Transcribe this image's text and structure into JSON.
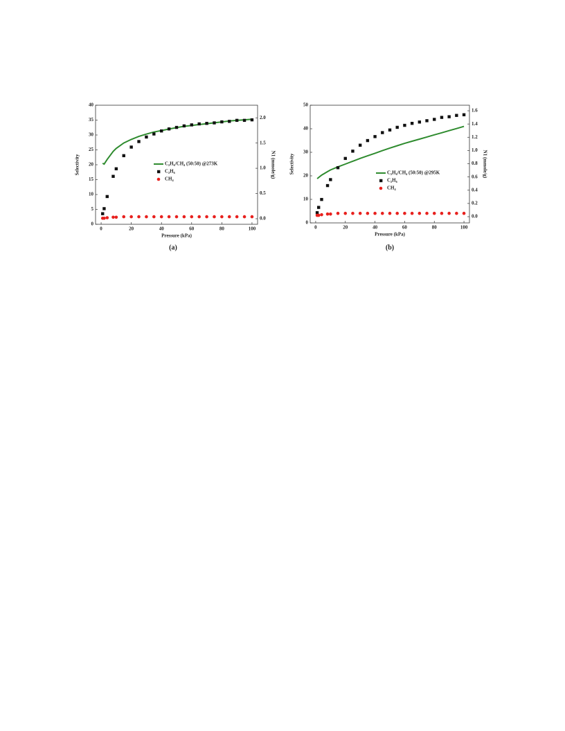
{
  "chart_data": [
    {
      "type": "line",
      "xlabel": "Pressure (kPa)",
      "ylabel": "Selectivity",
      "y2label": "N1 (mmole/g)",
      "caption": "(a)",
      "legend": "right",
      "x": [
        1,
        2,
        4,
        8,
        10,
        15,
        20,
        25,
        30,
        35,
        40,
        45,
        50,
        55,
        60,
        65,
        70,
        75,
        80,
        85,
        90,
        95,
        100
      ],
      "xlim": [
        -3.7,
        103.7
      ],
      "xticks": [
        0,
        20,
        40,
        60,
        80,
        100
      ],
      "ylim": [
        0,
        40
      ],
      "yticks": [
        0,
        5,
        10,
        15,
        20,
        25,
        30,
        35,
        40
      ],
      "y2lim": [
        -0.11,
        2.25
      ],
      "y2ticks": [
        {
          "value": 0,
          "label": "0.0"
        },
        0.5,
        {
          "value": 1,
          "label": "1.0"
        },
        1.5,
        {
          "value": 2,
          "label": "2.0"
        }
      ],
      "series": [
        {
          "name": "C₂H₆/CH₄ (50:50) @273K",
          "color": "#2e8b2e",
          "marker": "none",
          "values": [
            20.5,
            20.2,
            21.8,
            24.5,
            25.5,
            27.3,
            28.5,
            29.5,
            30.3,
            31,
            31.5,
            32,
            32.5,
            32.9,
            33.2,
            33.5,
            33.8,
            34.1,
            34.4,
            34.7,
            34.9,
            35.1,
            35.3
          ]
        },
        {
          "name": "C₂H₆",
          "color": "#111111",
          "marker": "square",
          "axis": "y2",
          "values": [
            0.1,
            0.2,
            0.44,
            0.84,
            0.99,
            1.25,
            1.42,
            1.53,
            1.62,
            1.68,
            1.74,
            1.78,
            1.81,
            1.84,
            1.86,
            1.88,
            1.89,
            1.9,
            1.92,
            1.93,
            1.95,
            1.95,
            1.96
          ]
        },
        {
          "name": "CH₄",
          "color": "#e8211e",
          "marker": "circle",
          "axis": "y2",
          "values": [
            0.01,
            0.01,
            0.02,
            0.03,
            0.03,
            0.04,
            0.04,
            0.04,
            0.04,
            0.04,
            0.04,
            0.04,
            0.04,
            0.04,
            0.04,
            0.04,
            0.04,
            0.04,
            0.04,
            0.04,
            0.04,
            0.04,
            0.04
          ]
        }
      ]
    },
    {
      "type": "line",
      "xlabel": "Pressure (kPa)",
      "ylabel": "Selectivity",
      "y2label": "N1 (mmole/g)",
      "caption": "(b)",
      "legend": "right",
      "x": [
        1,
        2,
        4,
        8,
        10,
        15,
        20,
        25,
        30,
        35,
        40,
        45,
        50,
        55,
        60,
        65,
        70,
        75,
        80,
        85,
        90,
        95,
        100
      ],
      "xlim": [
        -3.7,
        103.7
      ],
      "xticks": [
        0,
        20,
        40,
        60,
        80,
        100
      ],
      "ylim": [
        0,
        50
      ],
      "yticks": [
        0,
        10,
        20,
        30,
        40,
        50
      ],
      "y2lim": [
        -0.094,
        1.684
      ],
      "y2ticks": [
        {
          "value": 0,
          "label": "0.0"
        },
        0.2,
        0.4,
        0.6,
        0.8,
        {
          "value": 1,
          "label": "1.0"
        },
        1.2,
        1.4,
        1.6
      ],
      "series": [
        {
          "name": "C₂H₆/CH₄ (50:50) @295K",
          "color": "#2e8b2e",
          "marker": "none",
          "values": [
            18.8,
            19.3,
            20.3,
            21.8,
            22.5,
            23.8,
            25,
            26.2,
            27.4,
            28.5,
            29.6,
            30.7,
            31.8,
            32.8,
            33.8,
            34.7,
            35.6,
            36.5,
            37.4,
            38.3,
            39.2,
            40.1,
            41
          ]
        },
        {
          "name": "C₂H₆",
          "color": "#111111",
          "marker": "square",
          "axis": "y2",
          "values": [
            0.06,
            0.14,
            0.26,
            0.47,
            0.56,
            0.74,
            0.88,
            0.99,
            1.08,
            1.15,
            1.21,
            1.27,
            1.31,
            1.35,
            1.38,
            1.41,
            1.43,
            1.45,
            1.47,
            1.5,
            1.51,
            1.53,
            1.54
          ]
        },
        {
          "name": "CH₄",
          "color": "#e8211e",
          "marker": "circle",
          "axis": "y2",
          "values": [
            0.02,
            0.02,
            0.03,
            0.04,
            0.04,
            0.05,
            0.05,
            0.05,
            0.05,
            0.05,
            0.05,
            0.05,
            0.05,
            0.05,
            0.05,
            0.05,
            0.05,
            0.05,
            0.05,
            0.05,
            0.05,
            0.05,
            0.05
          ]
        }
      ]
    }
  ]
}
